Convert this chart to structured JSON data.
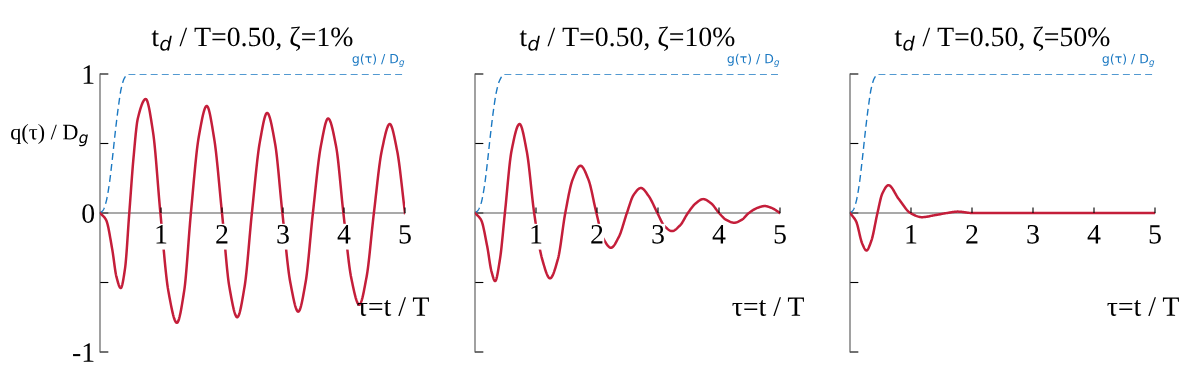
{
  "chart_data": [
    {
      "type": "line",
      "title": "t$_{d}$ / T=0.50, ζ=1%",
      "xlabel": "τ=t / T",
      "ylabel": "q(τ) / D$_{g}$",
      "xlim": [
        0,
        5
      ],
      "xticks": [
        1,
        2,
        3,
        4,
        5
      ],
      "ylim": [
        -1,
        1
      ],
      "yticks": [
        -1,
        {
          "value": -0.5,
          "label": null
        },
        0,
        {
          "value": 0.5,
          "label": null
        },
        1
      ],
      "grid": false,
      "marker": "none",
      "series": [
        {
          "name": "g(τ) / D$_{g}$",
          "color": "#1a78c2",
          "line_style": "dashed",
          "x": [
            0,
            0.05,
            0.1,
            0.15,
            0.2,
            0.25,
            0.3,
            0.35,
            0.4,
            0.46,
            0.5,
            5
          ],
          "values": [
            0,
            0.02,
            0.08,
            0.2,
            0.38,
            0.58,
            0.76,
            0.9,
            0.97,
            1,
            1,
            1
          ]
        },
        {
          "color": "#c41e3a",
          "line_style": "solid",
          "x": [
            0,
            0.1,
            0.2,
            0.27,
            0.34,
            0.41,
            0.48,
            0.55,
            0.62,
            0.75,
            0.87,
            0.99,
            1.12,
            1.26,
            1.38,
            1.49,
            1.62,
            1.75,
            1.87,
            2.0,
            2.12,
            2.25,
            2.37,
            2.49,
            2.62,
            2.74,
            2.87,
            2.99,
            3.12,
            3.25,
            3.37,
            3.49,
            3.62,
            3.74,
            3.87,
            3.99,
            4.12,
            4.25,
            4.37,
            4.49,
            4.62,
            4.75,
            4.87,
            5.0
          ],
          "values": [
            0,
            -0.05,
            -0.26,
            -0.46,
            -0.54,
            -0.4,
            0,
            0.4,
            0.68,
            0.82,
            0.58,
            0,
            -0.56,
            -0.79,
            -0.56,
            0,
            0.55,
            0.77,
            0.54,
            0,
            -0.53,
            -0.75,
            -0.53,
            0,
            0.51,
            0.72,
            0.5,
            0,
            -0.5,
            -0.71,
            -0.5,
            0,
            0.48,
            0.68,
            0.48,
            0,
            -0.47,
            -0.66,
            -0.46,
            0,
            0.45,
            0.64,
            0.45,
            0
          ]
        }
      ]
    },
    {
      "type": "line",
      "title": "t$_{d}$ / T=0.50, ζ=10%",
      "xlabel": "τ=t / T",
      "xlim": [
        0,
        5
      ],
      "xticks": [
        1,
        2,
        3,
        4,
        5
      ],
      "ylim": [
        -1,
        1
      ],
      "yticks": [
        {
          "value": -1,
          "label": null
        },
        {
          "value": -0.5,
          "label": null
        },
        {
          "value": 0,
          "label": null
        },
        {
          "value": 0.5,
          "label": null
        },
        {
          "value": 1,
          "label": null
        }
      ],
      "tick_labels": "x",
      "grid": false,
      "marker": "none",
      "series": [
        {
          "name": "g(τ) / D$_{g}$",
          "color": "#1a78c2",
          "line_style": "dashed",
          "x": [
            0,
            0.05,
            0.1,
            0.15,
            0.2,
            0.25,
            0.3,
            0.35,
            0.4,
            0.48,
            0.5,
            5
          ],
          "values": [
            0,
            0.02,
            0.07,
            0.18,
            0.35,
            0.55,
            0.73,
            0.87,
            0.95,
            1,
            1,
            1
          ]
        },
        {
          "color": "#c41e3a",
          "line_style": "solid",
          "x": [
            0,
            0.1,
            0.2,
            0.27,
            0.33,
            0.41,
            0.49,
            0.6,
            0.73,
            0.85,
            0.97,
            1.1,
            1.23,
            1.36,
            1.48,
            1.6,
            1.73,
            1.86,
            1.99,
            2.1,
            2.23,
            2.36,
            2.49,
            2.6,
            2.72,
            2.85,
            2.99,
            3.1,
            3.23,
            3.36,
            3.49,
            3.62,
            3.74,
            3.87,
            4.0,
            4.12,
            4.25,
            4.37,
            4.49,
            4.62,
            4.75,
            4.87,
            5.0
          ],
          "values": [
            0,
            -0.05,
            -0.24,
            -0.42,
            -0.49,
            -0.33,
            0,
            0.45,
            0.64,
            0.44,
            0,
            -0.33,
            -0.47,
            -0.33,
            0,
            0.24,
            0.34,
            0.24,
            0,
            -0.18,
            -0.25,
            -0.17,
            0,
            0.13,
            0.18,
            0.12,
            0,
            -0.09,
            -0.13,
            -0.09,
            0,
            0.07,
            0.1,
            0.07,
            0,
            -0.05,
            -0.07,
            -0.05,
            0,
            0.035,
            0.05,
            0.035,
            0
          ]
        }
      ]
    },
    {
      "type": "line",
      "title": "t$_{d}$ / T=0.50, ζ=50%",
      "xlabel": "τ=t / T",
      "xlim": [
        0,
        5
      ],
      "xticks": [
        1,
        2,
        3,
        4,
        5
      ],
      "ylim": [
        -1,
        1
      ],
      "yticks": [
        {
          "value": -1,
          "label": null
        },
        {
          "value": -0.5,
          "label": null
        },
        {
          "value": 0,
          "label": null
        },
        {
          "value": 0.5,
          "label": null
        },
        {
          "value": 1,
          "label": null
        }
      ],
      "tick_labels": "x",
      "grid": false,
      "marker": "none",
      "series": [
        {
          "name": "g(τ) / D$_{g}$",
          "color": "#1a78c2",
          "line_style": "dashed",
          "x": [
            0,
            0.05,
            0.1,
            0.15,
            0.2,
            0.25,
            0.3,
            0.35,
            0.4,
            0.46,
            0.5,
            5
          ],
          "values": [
            0,
            0.02,
            0.08,
            0.2,
            0.38,
            0.58,
            0.76,
            0.9,
            0.97,
            1,
            1,
            1
          ]
        },
        {
          "color": "#c41e3a",
          "line_style": "solid",
          "x": [
            0,
            0.1,
            0.2,
            0.27,
            0.35,
            0.45,
            0.53,
            0.63,
            0.8,
            0.99,
            1.18,
            1.4,
            1.59,
            1.77,
            2.0,
            3.0,
            4.0,
            5.0
          ],
          "values": [
            0,
            -0.06,
            -0.22,
            -0.27,
            -0.2,
            0,
            0.14,
            0.2,
            0.1,
            0,
            -0.03,
            -0.015,
            0,
            0.01,
            0,
            0,
            0,
            0
          ]
        }
      ]
    }
  ]
}
